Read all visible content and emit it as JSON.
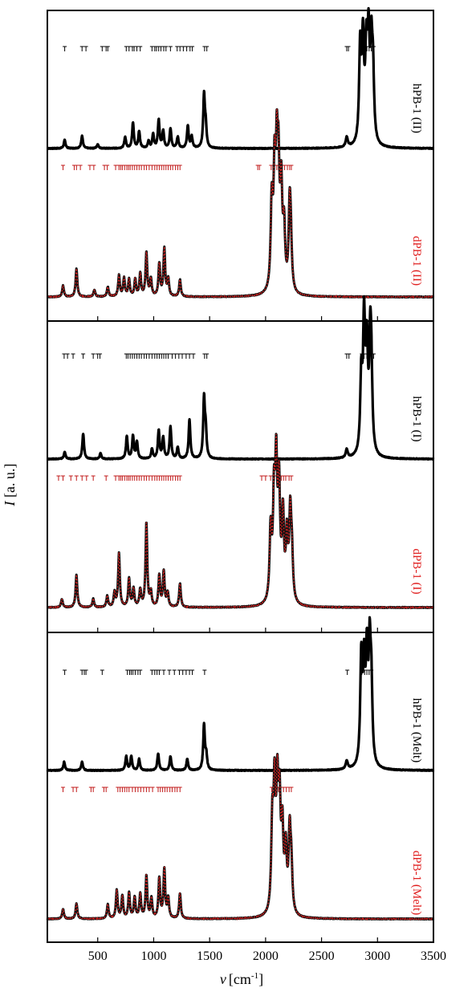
{
  "chart_data": {
    "type": "line",
    "xlabel": "ν [cm⁻¹]",
    "xlabel_symbol": "ν",
    "xlabel_unit": "[cm",
    "xlabel_exp": "-1",
    "xlabel_close": "]",
    "ylabel": "I [a. u.]",
    "ylabel_symbol": "I",
    "ylabel_unit": " [a. u.]",
    "xlim": [
      50,
      3500
    ],
    "xticks": [
      500,
      1000,
      1500,
      2000,
      2500,
      3000,
      3500
    ],
    "xtick_labels": [
      "500",
      "1000",
      "1500",
      "2000",
      "2500",
      "3000",
      "3500"
    ],
    "colors": {
      "hPB": "#000000",
      "dPB_line": "#111111",
      "dPB_dash": "#e32222",
      "dPB_label": "#e02020",
      "dPB_tick": "#c01818"
    },
    "series": [
      {
        "name": "hPB-1 (II)",
        "color": "#000000",
        "panel": 0,
        "slot": "top",
        "peaks": [
          [
            205,
            0.06
          ],
          [
            360,
            0.09
          ],
          [
            500,
            0.03
          ],
          [
            745,
            0.08
          ],
          [
            815,
            0.18
          ],
          [
            870,
            0.12
          ],
          [
            955,
            0.05
          ],
          [
            995,
            0.1
          ],
          [
            1045,
            0.2
          ],
          [
            1085,
            0.12
          ],
          [
            1150,
            0.14
          ],
          [
            1215,
            0.08
          ],
          [
            1305,
            0.16
          ],
          [
            1340,
            0.08
          ],
          [
            1450,
            0.37
          ],
          [
            1465,
            0.14
          ],
          [
            2725,
            0.07
          ],
          [
            2845,
            0.67
          ],
          [
            2870,
            0.7
          ],
          [
            2900,
            0.6
          ],
          [
            2920,
            0.68
          ],
          [
            2945,
            0.62
          ],
          [
            2960,
            0.45
          ]
        ],
        "ticks": [
          205,
          360,
          395,
          540,
          575,
          590,
          755,
          780,
          810,
          825,
          850,
          880,
          985,
          1010,
          1025,
          1045,
          1065,
          1090,
          1110,
          1150,
          1210,
          1235,
          1265,
          1295,
          1325,
          1345,
          1455,
          1475,
          2725,
          2740,
          2855,
          2880,
          2905,
          2925,
          2945,
          2965
        ]
      },
      {
        "name": "dPB-1 (II)",
        "color": "#111111",
        "panel": 0,
        "slot": "bottom",
        "peaks": [
          [
            190,
            0.08
          ],
          [
            310,
            0.2
          ],
          [
            470,
            0.05
          ],
          [
            590,
            0.07
          ],
          [
            690,
            0.15
          ],
          [
            735,
            0.13
          ],
          [
            780,
            0.12
          ],
          [
            835,
            0.12
          ],
          [
            880,
            0.16
          ],
          [
            935,
            0.31
          ],
          [
            975,
            0.12
          ],
          [
            1050,
            0.23
          ],
          [
            1095,
            0.34
          ],
          [
            1130,
            0.12
          ],
          [
            1235,
            0.12
          ],
          [
            2055,
            0.6
          ],
          [
            2080,
            0.77
          ],
          [
            2100,
            0.8
          ],
          [
            2115,
            0.72
          ],
          [
            2140,
            0.68
          ],
          [
            2165,
            0.42
          ],
          [
            2215,
            0.55
          ],
          [
            2225,
            0.3
          ]
        ],
        "ticks": [
          190,
          290,
          310,
          345,
          430,
          465,
          560,
          585,
          660,
          690,
          705,
          720,
          740,
          760,
          775,
          790,
          810,
          830,
          850,
          870,
          890,
          915,
          935,
          960,
          985,
          1010,
          1030,
          1050,
          1070,
          1090,
          1110,
          1130,
          1150,
          1170,
          1195,
          1215,
          1235,
          1930,
          1945,
          2050,
          2065,
          2080,
          2100,
          2115,
          2130,
          2150,
          2170,
          2195,
          2215,
          2230
        ]
      },
      {
        "name": "hPB-1 (I)",
        "color": "#000000",
        "panel": 1,
        "slot": "top",
        "peaks": [
          [
            205,
            0.05
          ],
          [
            370,
            0.18
          ],
          [
            525,
            0.04
          ],
          [
            760,
            0.16
          ],
          [
            815,
            0.16
          ],
          [
            850,
            0.12
          ],
          [
            985,
            0.07
          ],
          [
            1045,
            0.2
          ],
          [
            1085,
            0.15
          ],
          [
            1150,
            0.23
          ],
          [
            1215,
            0.08
          ],
          [
            1320,
            0.28
          ],
          [
            1450,
            0.42
          ],
          [
            1465,
            0.18
          ],
          [
            2725,
            0.06
          ],
          [
            2855,
            0.53
          ],
          [
            2880,
            0.92
          ],
          [
            2905,
            0.7
          ],
          [
            2935,
            0.7
          ],
          [
            2945,
            0.45
          ]
        ],
        "ticks": [
          200,
          230,
          280,
          370,
          460,
          500,
          520,
          755,
          770,
          790,
          810,
          830,
          850,
          870,
          890,
          915,
          935,
          960,
          985,
          1010,
          1030,
          1050,
          1070,
          1090,
          1110,
          1130,
          1165,
          1195,
          1225,
          1255,
          1290,
          1320,
          1355,
          1455,
          1475,
          2725,
          2745,
          2860,
          2880,
          2905,
          2925,
          2945,
          2965
        ]
      },
      {
        "name": "dPB-1 (I)",
        "color": "#111111",
        "panel": 1,
        "slot": "bottom",
        "peaks": [
          [
            180,
            0.06
          ],
          [
            310,
            0.23
          ],
          [
            460,
            0.06
          ],
          [
            585,
            0.08
          ],
          [
            650,
            0.1
          ],
          [
            690,
            0.38
          ],
          [
            780,
            0.2
          ],
          [
            820,
            0.13
          ],
          [
            880,
            0.12
          ],
          [
            935,
            0.6
          ],
          [
            975,
            0.1
          ],
          [
            1050,
            0.22
          ],
          [
            1090,
            0.25
          ],
          [
            1125,
            0.1
          ],
          [
            1235,
            0.17
          ],
          [
            2045,
            0.5
          ],
          [
            2075,
            0.68
          ],
          [
            2095,
            0.9
          ],
          [
            2120,
            0.78
          ],
          [
            2155,
            0.6
          ],
          [
            2190,
            0.45
          ],
          [
            2220,
            0.6
          ],
          [
            2235,
            0.3
          ]
        ],
        "ticks": [
          150,
          190,
          260,
          310,
          360,
          400,
          460,
          575,
          660,
          690,
          705,
          720,
          740,
          760,
          775,
          790,
          810,
          830,
          850,
          870,
          890,
          915,
          935,
          960,
          985,
          1010,
          1030,
          1050,
          1070,
          1090,
          1110,
          1130,
          1150,
          1170,
          1195,
          1215,
          1235,
          1965,
          2000,
          2045,
          2080,
          2100,
          2120,
          2140,
          2160,
          2180,
          2210,
          2230
        ]
      },
      {
        "name": "hPB-1 (Melt)",
        "color": "#000000",
        "panel": 2,
        "slot": "top",
        "peaks": [
          [
            200,
            0.06
          ],
          [
            360,
            0.06
          ],
          [
            755,
            0.1
          ],
          [
            800,
            0.1
          ],
          [
            870,
            0.08
          ],
          [
            1040,
            0.12
          ],
          [
            1150,
            0.1
          ],
          [
            1300,
            0.08
          ],
          [
            1450,
            0.32
          ],
          [
            1470,
            0.1
          ],
          [
            2725,
            0.06
          ],
          [
            2855,
            0.75
          ],
          [
            2880,
            0.65
          ],
          [
            2905,
            0.72
          ],
          [
            2930,
            0.75
          ],
          [
            2945,
            0.5
          ]
        ],
        "ticks": [
          205,
          360,
          380,
          395,
          540,
          765,
          785,
          800,
          815,
          835,
          860,
          880,
          985,
          1010,
          1030,
          1050,
          1090,
          1140,
          1185,
          1230,
          1260,
          1290,
          1320,
          1345,
          1455,
          2730,
          2860,
          2885,
          2905,
          2925,
          2945
        ]
      },
      {
        "name": "dPB-1 (Melt)",
        "color": "#111111",
        "panel": 2,
        "slot": "bottom",
        "peaks": [
          [
            190,
            0.07
          ],
          [
            310,
            0.11
          ],
          [
            590,
            0.1
          ],
          [
            670,
            0.2
          ],
          [
            720,
            0.16
          ],
          [
            780,
            0.18
          ],
          [
            830,
            0.15
          ],
          [
            880,
            0.17
          ],
          [
            935,
            0.3
          ],
          [
            980,
            0.14
          ],
          [
            1050,
            0.28
          ],
          [
            1095,
            0.35
          ],
          [
            1130,
            0.14
          ],
          [
            1235,
            0.18
          ],
          [
            2060,
            0.6
          ],
          [
            2080,
            0.82
          ],
          [
            2105,
            0.8
          ],
          [
            2125,
            0.7
          ],
          [
            2150,
            0.55
          ],
          [
            2180,
            0.43
          ],
          [
            2215,
            0.55
          ],
          [
            2230,
            0.3
          ]
        ],
        "ticks": [
          190,
          280,
          310,
          440,
          460,
          555,
          575,
          680,
          700,
          720,
          740,
          760,
          780,
          810,
          835,
          860,
          885,
          910,
          935,
          960,
          990,
          1040,
          1060,
          1080,
          1100,
          1120,
          1145,
          1165,
          1190,
          1210,
          1235,
          2055,
          2075,
          2095,
          2115,
          2135,
          2160,
          2185,
          2210,
          2230
        ]
      }
    ]
  }
}
